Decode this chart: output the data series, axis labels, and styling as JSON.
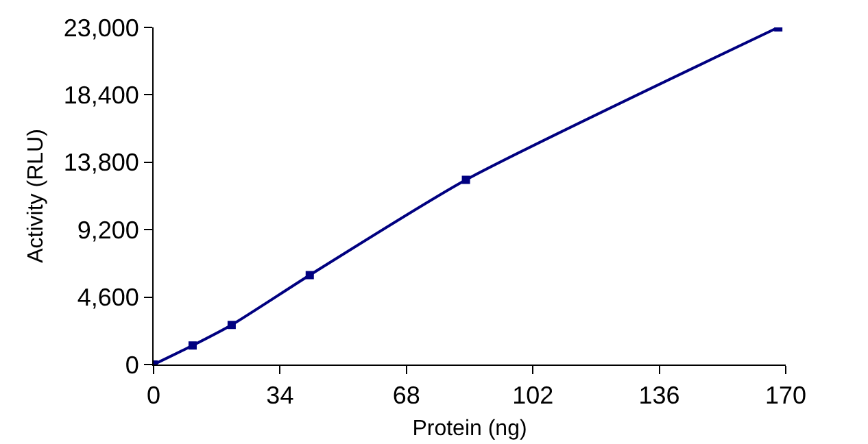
{
  "chart_data": {
    "type": "line",
    "xlabel": "Protein (ng)",
    "ylabel": "Activity (RLU)",
    "x": [
      0,
      10.5,
      21,
      42,
      84,
      168
    ],
    "series": [
      {
        "color": "#000080",
        "values": [
          0,
          1300,
          2700,
          6100,
          12600,
          23000
        ]
      }
    ],
    "xlim": [
      0,
      170
    ],
    "xticks": [
      0,
      34,
      68,
      102,
      136,
      170
    ],
    "ylim": [
      0,
      23000
    ],
    "yticks": [
      {
        "value": 0,
        "label": "0"
      },
      {
        "value": 4600,
        "label": "4,600"
      },
      {
        "value": 9200,
        "label": "9,200"
      },
      {
        "value": 13800,
        "label": "13,800"
      },
      {
        "value": 18400,
        "label": "18,400"
      },
      {
        "value": 23000,
        "label": "23,000"
      }
    ],
    "grid": false,
    "marker": "square",
    "line_style": "solid"
  }
}
